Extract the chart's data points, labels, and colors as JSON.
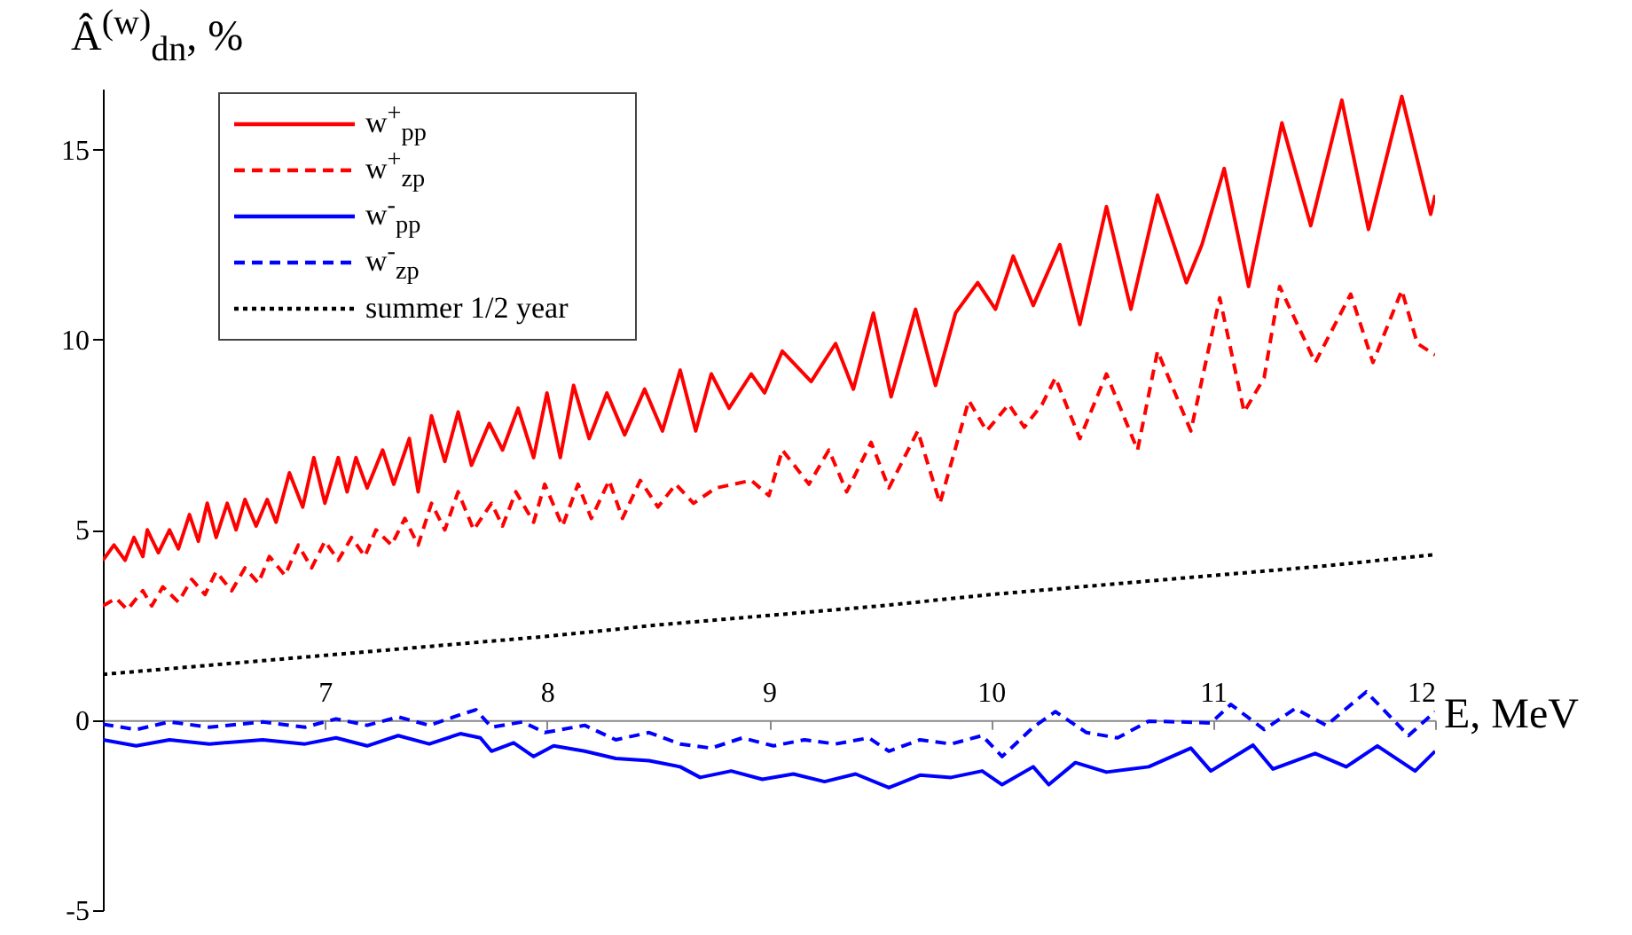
{
  "chart_data": {
    "type": "line",
    "ylabel": "Â$^{(w)}$$_{dn}$, %",
    "xlabel": "E, MeV",
    "xlim": [
      6.0,
      12.0
    ],
    "ylim": [
      -5,
      16.6
    ],
    "xticks": [
      7,
      8,
      9,
      10,
      11,
      12
    ],
    "yticks": [
      -5,
      0,
      5,
      10,
      15
    ],
    "grid": false,
    "legend": "top left",
    "marker": "none",
    "series": [
      {
        "name": "w$^{+}$$_{pp}$",
        "color": "#ff0000",
        "line_style": "solid",
        "x": [
          6.0,
          6.05,
          6.1,
          6.14,
          6.18,
          6.2,
          6.25,
          6.3,
          6.34,
          6.39,
          6.43,
          6.47,
          6.51,
          6.56,
          6.6,
          6.64,
          6.69,
          6.74,
          6.78,
          6.84,
          6.9,
          6.95,
          7.0,
          7.06,
          7.1,
          7.14,
          7.19,
          7.26,
          7.31,
          7.38,
          7.42,
          7.48,
          7.54,
          7.6,
          7.66,
          7.74,
          7.8,
          7.87,
          7.94,
          8.0,
          8.06,
          8.12,
          8.19,
          8.27,
          8.35,
          8.44,
          8.52,
          8.6,
          8.67,
          8.74,
          8.82,
          8.92,
          8.98,
          9.06,
          9.19,
          9.3,
          9.38,
          9.47,
          9.55,
          9.66,
          9.75,
          9.84,
          9.94,
          10.02,
          10.1,
          10.19,
          10.31,
          10.4,
          10.52,
          10.63,
          10.75,
          10.88,
          10.95,
          11.05,
          11.16,
          11.31,
          11.44,
          11.58,
          11.7,
          11.85,
          11.98,
          12.0
        ],
        "values": [
          4.2,
          4.6,
          4.2,
          4.8,
          4.3,
          5.0,
          4.4,
          5.0,
          4.5,
          5.4,
          4.7,
          5.7,
          4.8,
          5.7,
          5.0,
          5.8,
          5.1,
          5.8,
          5.2,
          6.5,
          5.6,
          6.9,
          5.7,
          6.9,
          6.0,
          6.9,
          6.1,
          7.1,
          6.2,
          7.4,
          6.0,
          8.0,
          6.8,
          8.1,
          6.7,
          7.8,
          7.1,
          8.2,
          6.9,
          8.6,
          6.9,
          8.8,
          7.4,
          8.6,
          7.5,
          8.7,
          7.6,
          9.2,
          7.6,
          9.1,
          8.2,
          9.1,
          8.6,
          9.7,
          8.9,
          9.9,
          8.7,
          10.7,
          8.5,
          10.8,
          8.8,
          10.7,
          11.5,
          10.8,
          12.2,
          10.9,
          12.5,
          10.4,
          13.5,
          10.8,
          13.8,
          11.5,
          12.5,
          14.5,
          11.4,
          15.7,
          13.0,
          16.3,
          12.9,
          16.4,
          13.3,
          13.8
        ]
      },
      {
        "name": "w$^{+}$$_{zp}$",
        "color": "#ff0000",
        "line_style": "dashed",
        "x": [
          6.0,
          6.06,
          6.11,
          6.18,
          6.22,
          6.27,
          6.34,
          6.4,
          6.46,
          6.51,
          6.58,
          6.64,
          6.7,
          6.75,
          6.82,
          6.88,
          6.94,
          7.0,
          7.06,
          7.12,
          7.18,
          7.23,
          7.3,
          7.36,
          7.42,
          7.48,
          7.54,
          7.6,
          7.67,
          7.75,
          7.8,
          7.86,
          7.94,
          7.99,
          8.07,
          8.14,
          8.2,
          8.28,
          8.34,
          8.42,
          8.5,
          8.58,
          8.66,
          8.76,
          8.92,
          9.0,
          9.06,
          9.18,
          9.27,
          9.35,
          9.46,
          9.54,
          9.67,
          9.77,
          9.9,
          9.98,
          10.08,
          10.15,
          10.23,
          10.29,
          10.4,
          10.52,
          10.66,
          10.75,
          10.9,
          11.03,
          11.14,
          11.23,
          11.3,
          11.46,
          11.62,
          11.72,
          11.85,
          11.92,
          12.0
        ],
        "values": [
          3.0,
          3.2,
          2.9,
          3.4,
          3.0,
          3.5,
          3.1,
          3.7,
          3.3,
          3.9,
          3.4,
          4.0,
          3.6,
          4.3,
          3.8,
          4.6,
          4.0,
          4.7,
          4.2,
          4.8,
          4.3,
          5.0,
          4.6,
          5.3,
          4.6,
          5.7,
          5.0,
          6.0,
          5.0,
          5.7,
          5.1,
          6.0,
          5.2,
          6.2,
          5.1,
          6.2,
          5.3,
          6.3,
          5.3,
          6.3,
          5.6,
          6.2,
          5.7,
          6.1,
          6.3,
          5.9,
          7.1,
          6.2,
          7.1,
          6.0,
          7.3,
          6.1,
          7.6,
          5.7,
          8.4,
          7.6,
          8.3,
          7.7,
          8.3,
          9.0,
          7.4,
          9.1,
          7.1,
          9.7,
          7.6,
          11.1,
          8.1,
          9.0,
          11.4,
          9.4,
          11.2,
          9.4,
          11.3,
          9.9,
          9.6
        ]
      },
      {
        "name": "w$^{-}$$_{pp}$",
        "color": "#0000ff",
        "line_style": "solid",
        "x": [
          6.0,
          6.15,
          6.3,
          6.48,
          6.72,
          6.91,
          7.05,
          7.19,
          7.33,
          7.47,
          7.61,
          7.7,
          7.75,
          7.85,
          7.94,
          8.03,
          8.17,
          8.31,
          8.46,
          8.6,
          8.69,
          8.83,
          8.97,
          9.11,
          9.25,
          9.39,
          9.54,
          9.68,
          9.82,
          9.96,
          10.05,
          10.19,
          10.26,
          10.38,
          10.52,
          10.71,
          10.9,
          10.99,
          11.18,
          11.27,
          11.46,
          11.6,
          11.74,
          11.91,
          12.0
        ],
        "values": [
          -0.52,
          -0.68,
          -0.52,
          -0.63,
          -0.52,
          -0.63,
          -0.47,
          -0.68,
          -0.41,
          -0.63,
          -0.36,
          -0.47,
          -0.82,
          -0.6,
          -0.96,
          -0.68,
          -0.82,
          -1.01,
          -1.07,
          -1.23,
          -1.51,
          -1.34,
          -1.56,
          -1.42,
          -1.62,
          -1.42,
          -1.78,
          -1.45,
          -1.51,
          -1.34,
          -1.7,
          -1.23,
          -1.7,
          -1.12,
          -1.37,
          -1.23,
          -0.74,
          -1.34,
          -0.66,
          -1.29,
          -0.88,
          -1.23,
          -0.68,
          -1.34,
          -0.82
        ]
      },
      {
        "name": "w$^{-}$$_{zp}$",
        "color": "#0000ff",
        "line_style": "dashed",
        "x": [
          6.0,
          6.15,
          6.3,
          6.48,
          6.72,
          6.91,
          7.05,
          7.19,
          7.33,
          7.47,
          7.61,
          7.68,
          7.75,
          7.89,
          7.99,
          8.17,
          8.31,
          8.46,
          8.6,
          8.74,
          8.88,
          9.02,
          9.16,
          9.3,
          9.45,
          9.54,
          9.68,
          9.82,
          9.96,
          10.05,
          10.19,
          10.29,
          10.43,
          10.57,
          10.71,
          10.85,
          10.99,
          11.08,
          11.23,
          11.37,
          11.51,
          11.69,
          11.88,
          12.0
        ],
        "values": [
          -0.11,
          -0.25,
          -0.05,
          -0.19,
          -0.05,
          -0.19,
          0.03,
          -0.14,
          0.08,
          -0.14,
          0.14,
          0.27,
          -0.19,
          -0.05,
          -0.33,
          -0.14,
          -0.52,
          -0.33,
          -0.63,
          -0.74,
          -0.47,
          -0.68,
          -0.52,
          -0.63,
          -0.47,
          -0.82,
          -0.52,
          -0.63,
          -0.41,
          -0.96,
          -0.19,
          0.22,
          -0.33,
          -0.47,
          -0.03,
          -0.05,
          -0.08,
          0.41,
          -0.25,
          0.3,
          -0.14,
          0.74,
          -0.41,
          0.22
        ]
      },
      {
        "name": "summer 1/2 year",
        "color": "#000000",
        "line_style": "dotted",
        "x": [
          6.0,
          6.5,
          7.0,
          7.5,
          8.0,
          8.5,
          9.0,
          9.5,
          10.0,
          10.5,
          11.0,
          11.5,
          12.0
        ],
        "values": [
          1.2,
          1.45,
          1.7,
          1.95,
          2.2,
          2.5,
          2.75,
          3.0,
          3.3,
          3.55,
          3.8,
          4.05,
          4.35
        ]
      }
    ]
  }
}
